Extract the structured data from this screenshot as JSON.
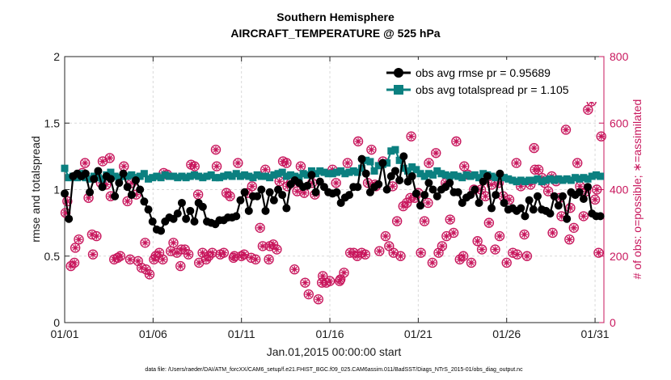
{
  "chart_data": {
    "type": "line",
    "title": "Southern Hemisphere",
    "subtitle": "AIRCRAFT_TEMPERATURE @ 525 hPa",
    "xlabel": "Jan.01,2015 00:00:00 start",
    "ylabel": "rmse and totalspread",
    "ylabel_right": "# of obs: o=possible; ∗=assimilated",
    "footer": "data file: /Users/raeder/DAI/ATM_forcXX/CAM6_setup/f.e21.FHIST_BGC.f09_025.CAM6assim.011/BadSST/Diags_NTrS_2015-01/obs_diag_output.nc",
    "x_tick_labels": [
      "01/01",
      "01/06",
      "01/11",
      "01/16",
      "01/21",
      "01/26",
      "01/31"
    ],
    "x_ticks_day": [
      1,
      6,
      11,
      16,
      21,
      26,
      31
    ],
    "xlim_day": [
      1,
      31.5
    ],
    "ylim": [
      0,
      2
    ],
    "y_ticks": [
      0,
      0.5,
      1,
      1.5,
      2
    ],
    "y_tick_labels": [
      "0",
      "0.5",
      "1",
      "1.5",
      "2"
    ],
    "y2lim": [
      0,
      800
    ],
    "y2_ticks": [
      0,
      200,
      400,
      600,
      800
    ],
    "y2_tick_labels": [
      "0",
      "200",
      "400",
      "600",
      "800"
    ],
    "grid": true,
    "legend_position": "top-right",
    "colors": {
      "rmse": "#000000",
      "spread": "#0b8080",
      "obs": "#c8175d"
    },
    "series": [
      {
        "name": "obs avg rmse pr = 0.95689",
        "axis": "left",
        "marker": "circle",
        "values": [
          0.97,
          0.78,
          1.1,
          1.12,
          1.1,
          1.12,
          0.98,
          1.08,
          1.14,
          1.02,
          1.1,
          1.08,
          0.95,
          1.05,
          1.12,
          1.02,
          0.96,
          1.07,
          1.0,
          0.91,
          0.85,
          0.76,
          0.7,
          0.69,
          0.76,
          0.79,
          0.78,
          0.82,
          0.9,
          0.78,
          0.84,
          0.76,
          0.9,
          0.87,
          0.76,
          0.75,
          0.74,
          0.77,
          0.77,
          0.79,
          0.79,
          0.8,
          0.92,
          0.98,
          0.84,
          0.95,
          0.95,
          1.0,
          0.84,
          0.98,
          0.92,
          1.0,
          0.96,
          0.86,
          1.04,
          1.07,
          1.05,
          1.02,
          1.03,
          1.11,
          0.98,
          1.06,
          1.02,
          0.98,
          0.97,
          0.98,
          0.9,
          0.94,
          0.96,
          1.02,
          1.02,
          1.23,
          1.12,
          0.98,
          1.02,
          1.04,
          1.2,
          1.0,
          1.1,
          1.14,
          1.07,
          1.25,
          1.06,
          1.1,
          0.97,
          0.88,
          0.96,
          1.05,
          1.0,
          0.95,
          1.0,
          1.02,
          1.05,
          0.98,
          0.98,
          0.9,
          0.94,
          0.96,
          1.0,
          0.9,
          1.06,
          1.1,
          0.86,
          0.96,
          1.12,
          0.9,
          0.85,
          0.86,
          0.84,
          0.86,
          0.8,
          0.92,
          0.85,
          0.95,
          0.85,
          0.84,
          0.82,
          0.95,
          0.88,
          0.95,
          0.78,
          0.98,
          0.96,
          0.98,
          0.93,
          1.02,
          0.82,
          0.8,
          0.8
        ]
      },
      {
        "name": "obs avg totalspread pr = 1.105",
        "axis": "left",
        "marker": "square",
        "values": [
          1.16,
          1.09,
          1.1,
          1.09,
          1.12,
          1.09,
          1.08,
          1.1,
          1.09,
          1.08,
          1.11,
          1.13,
          1.1,
          1.09,
          1.1,
          1.1,
          1.11,
          1.09,
          1.1,
          1.12,
          1.08,
          1.09,
          1.1,
          1.09,
          1.11,
          1.1,
          1.1,
          1.09,
          1.1,
          1.09,
          1.1,
          1.11,
          1.1,
          1.09,
          1.1,
          1.11,
          1.09,
          1.09,
          1.1,
          1.11,
          1.1,
          1.12,
          1.1,
          1.11,
          1.1,
          1.09,
          1.11,
          1.1,
          1.1,
          1.09,
          1.11,
          1.12,
          1.13,
          1.1,
          1.11,
          1.1,
          1.09,
          1.12,
          1.11,
          1.14,
          1.12,
          1.14,
          1.13,
          1.12,
          1.12,
          1.13,
          1.14,
          1.12,
          1.13,
          1.14,
          1.13,
          1.16,
          1.22,
          1.21,
          1.14,
          1.18,
          1.19,
          1.2,
          1.29,
          1.3,
          1.22,
          1.16,
          1.14,
          1.17,
          1.15,
          1.12,
          1.1,
          1.12,
          1.11,
          1.14,
          1.12,
          1.11,
          1.1,
          1.11,
          1.1,
          1.09,
          1.11,
          1.1,
          1.11,
          1.09,
          1.12,
          1.11,
          1.1,
          1.09,
          1.1,
          1.09,
          1.08,
          1.07,
          1.06,
          1.07,
          1.06,
          1.07,
          1.07,
          1.08,
          1.06,
          1.07,
          1.08,
          1.07,
          1.08,
          1.07,
          1.08,
          1.07,
          1.09,
          1.08,
          1.09,
          1.08,
          1.1,
          1.11,
          1.1
        ]
      },
      {
        "name": "# of obs possible",
        "axis": "right",
        "marker": "open-circle",
        "values": [
          330,
          365,
          170,
          180,
          225,
          250,
          450,
          480,
          375,
          265,
          205,
          260,
          420,
          485,
          415,
          495,
          380,
          190,
          195,
          200,
          470,
          365,
          190,
          420,
          385,
          185,
          165,
          240,
          160,
          145,
          190,
          200,
          210,
          190,
          450,
          445,
          215,
          240,
          210,
          170,
          220,
          220,
          205,
          475,
          470,
          385,
          180,
          210,
          190,
          200,
          210,
          520,
          470,
          205,
          210,
          390,
          380,
          195,
          200,
          480,
          200,
          205,
          390,
          195,
          410,
          190,
          285,
          230,
          460,
          190,
          230,
          235,
          220,
          425,
          485,
          480,
          410,
          420,
          160,
          395,
          470,
          390,
          120,
          85,
          420,
          385,
          70,
          120,
          140,
          120,
          125,
          460,
          420,
          125,
          130,
          150,
          480,
          210,
          210,
          200,
          545,
          210,
          205,
          420,
          520,
          415,
          410,
          215,
          485,
          260,
          230,
          410,
          210,
          305,
          200,
          350,
          360,
          375,
          560,
          375,
          390,
          210,
          305,
          360,
          480,
          180,
          510,
          210,
          230,
          420,
          260,
          310,
          270,
          545,
          190,
          200,
          470,
          445,
          180,
          400,
          245,
          400,
          220,
          380,
          300,
          415,
          220,
          420,
          260,
          380,
          180,
          370,
          210,
          480,
          205,
          410,
          265,
          200,
          415,
          525,
          460,
          460,
          435,
          420,
          395,
          440,
          270,
          425,
          375,
          320,
          580,
          250,
          345,
          285,
          480,
          410,
          320,
          395,
          640,
          665,
          370,
          400,
          210,
          560,
          320,
          390,
          440,
          665,
          360,
          200,
          415,
          180,
          325,
          350,
          0
        ]
      },
      {
        "name": "# of obs assimilated",
        "axis": "right",
        "marker": "asterisk",
        "values": [
          330,
          365,
          170,
          180,
          225,
          250,
          450,
          480,
          375,
          265,
          205,
          260,
          420,
          485,
          415,
          495,
          380,
          190,
          195,
          200,
          470,
          365,
          190,
          420,
          385,
          185,
          165,
          240,
          160,
          145,
          190,
          200,
          210,
          190,
          450,
          445,
          215,
          240,
          210,
          170,
          220,
          220,
          205,
          475,
          470,
          385,
          180,
          210,
          190,
          200,
          210,
          520,
          470,
          205,
          210,
          390,
          380,
          195,
          200,
          480,
          200,
          205,
          390,
          195,
          410,
          190,
          285,
          230,
          460,
          190,
          230,
          235,
          220,
          425,
          485,
          480,
          410,
          420,
          160,
          395,
          470,
          390,
          120,
          85,
          420,
          385,
          70,
          120,
          140,
          120,
          125,
          460,
          420,
          125,
          130,
          150,
          480,
          210,
          210,
          200,
          545,
          210,
          205,
          420,
          520,
          415,
          410,
          215,
          485,
          260,
          230,
          410,
          210,
          305,
          200,
          350,
          360,
          375,
          560,
          375,
          390,
          210,
          305,
          360,
          480,
          180,
          510,
          210,
          230,
          420,
          260,
          310,
          270,
          545,
          190,
          200,
          470,
          445,
          180,
          400,
          245,
          400,
          220,
          380,
          300,
          415,
          220,
          420,
          260,
          380,
          180,
          370,
          210,
          480,
          205,
          410,
          265,
          200,
          415,
          525,
          460,
          460,
          435,
          420,
          395,
          440,
          270,
          425,
          375,
          320,
          580,
          250,
          345,
          285,
          480,
          410,
          320,
          395,
          640,
          665,
          370,
          400,
          210,
          560,
          320,
          390,
          440,
          665,
          360,
          200,
          415,
          180,
          325,
          350,
          0
        ]
      }
    ],
    "obs_x_day": [
      1.05,
      1.15,
      1.35,
      1.55,
      1.6,
      1.8,
      2.0,
      2.15,
      2.35,
      2.55,
      2.6,
      2.8,
      3.05,
      3.15,
      3.35,
      3.55,
      3.6,
      3.8,
      4.0,
      4.15,
      4.35,
      4.55,
      4.7,
      4.8,
      5.05,
      5.15,
      5.35,
      5.55,
      5.6,
      5.8,
      6.05,
      6.15,
      6.35,
      6.55,
      6.6,
      6.8,
      7.0,
      7.15,
      7.35,
      7.55,
      7.6,
      7.8,
      8.0,
      8.15,
      8.35,
      8.55,
      8.6,
      8.8,
      9.0,
      9.15,
      9.35,
      9.55,
      9.6,
      9.8,
      10.0,
      10.15,
      10.35,
      10.55,
      10.6,
      10.8,
      11.0,
      11.15,
      11.35,
      11.55,
      11.6,
      11.8,
      12.05,
      12.2,
      12.35,
      12.55,
      12.6,
      12.8,
      13.0,
      13.15,
      13.35,
      13.55,
      13.6,
      13.8,
      14.0,
      14.15,
      14.35,
      14.55,
      14.6,
      14.8,
      15.0,
      15.15,
      15.35,
      15.55,
      15.6,
      15.8,
      16.0,
      16.15,
      16.35,
      16.55,
      16.6,
      16.8,
      17.0,
      17.15,
      17.35,
      17.55,
      17.6,
      17.8,
      18.0,
      18.15,
      18.35,
      18.55,
      18.6,
      18.8,
      19.0,
      19.15,
      19.35,
      19.55,
      19.6,
      19.8,
      20.0,
      20.15,
      20.35,
      20.55,
      20.6,
      20.8,
      21.0,
      21.15,
      21.35,
      21.55,
      21.6,
      21.8,
      22.0,
      22.15,
      22.35,
      22.55,
      22.6,
      22.8,
      23.0,
      23.15,
      23.35,
      23.55,
      23.6,
      23.8,
      24.0,
      24.15,
      24.35,
      24.55,
      24.6,
      24.8,
      25.0,
      25.15,
      25.35,
      25.55,
      25.6,
      25.8,
      26.0,
      26.15,
      26.35,
      26.55,
      26.6,
      26.8,
      27.0,
      27.15,
      27.35,
      27.55,
      27.6,
      27.8,
      28.0,
      28.15,
      28.35,
      28.55,
      28.6,
      28.8,
      29.0,
      29.1,
      29.35,
      29.55,
      29.6,
      29.8,
      30.0,
      30.15,
      30.35,
      30.5,
      30.6,
      30.8,
      31.0,
      31.1,
      31.2,
      31.35
    ]
  }
}
